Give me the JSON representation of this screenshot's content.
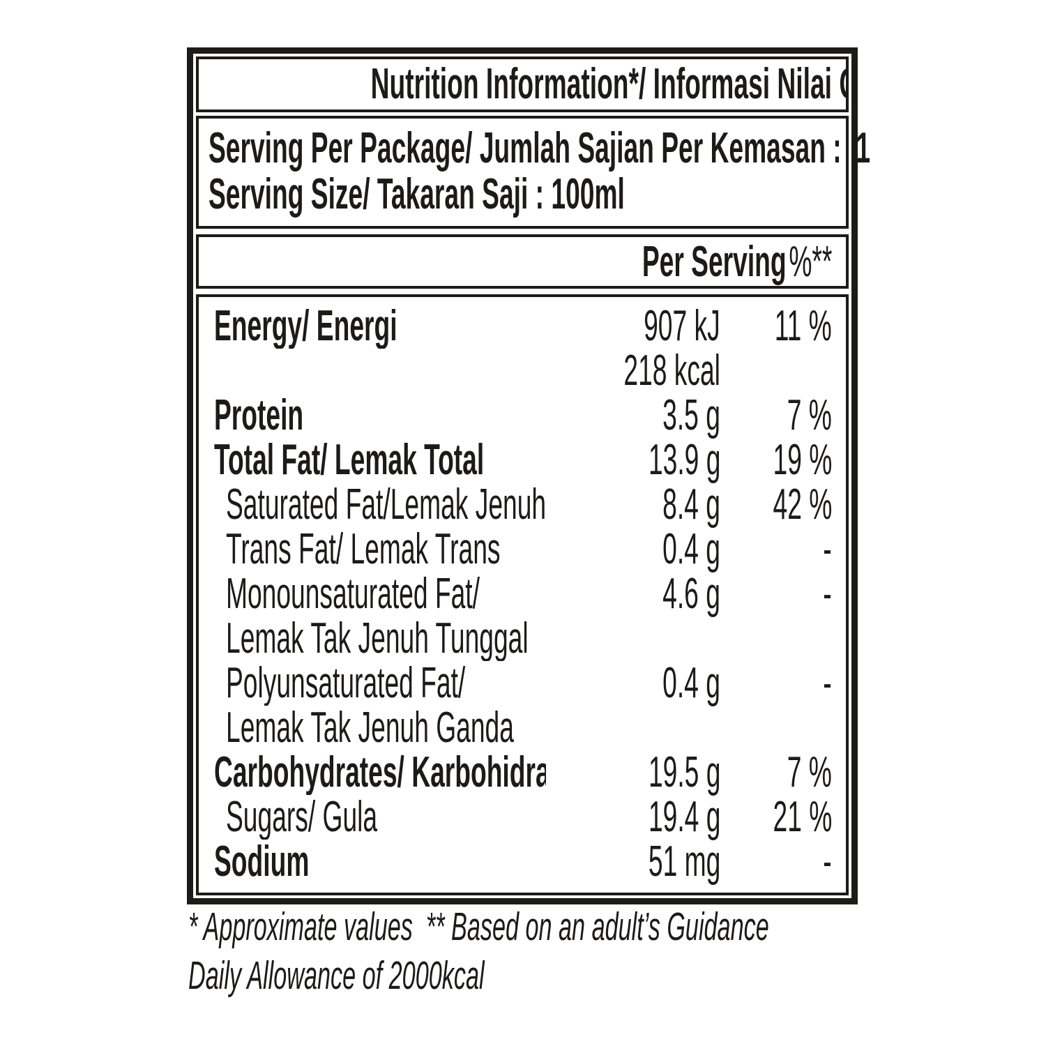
{
  "title": "Nutrition Information*/ Informasi Nilai Gizi",
  "serving": {
    "line1": "Serving Per Package/ Jumlah Sajian Per Kemasan :  1",
    "line2": "Serving Size/ Takaran Saji : 100ml"
  },
  "table": {
    "columns": {
      "per_serving": "Per Serving",
      "percent": "%**"
    },
    "rows": [
      {
        "label": "Energy/ Energi",
        "amount": "907 kJ",
        "percent": "11 %"
      },
      {
        "label": "",
        "amount": "218 kcal",
        "percent": ""
      },
      {
        "label": "Protein",
        "amount": "3.5 g",
        "percent": "7 %"
      },
      {
        "label": "Total Fat/ Lemak Total",
        "amount": "13.9 g",
        "percent": "19 %"
      },
      {
        "label": "Saturated Fat/Lemak Jenuh",
        "amount": "8.4 g",
        "percent": "42 %"
      },
      {
        "label": "Trans Fat/ Lemak Trans",
        "amount": "0.4 g",
        "percent": "-"
      },
      {
        "label": "Monounsaturated Fat/",
        "amount": "4.6 g",
        "percent": "-"
      },
      {
        "label": "Lemak Tak Jenuh Tunggal",
        "amount": "",
        "percent": ""
      },
      {
        "label": "Polyunsaturated Fat/",
        "amount": "0.4 g",
        "percent": "-"
      },
      {
        "label": "Lemak Tak Jenuh Ganda",
        "amount": "",
        "percent": ""
      },
      {
        "label": "Carbohydrates/ Karbohidrate",
        "amount": "19.5 g",
        "percent": "7 %"
      },
      {
        "label": "Sugars/ Gula",
        "amount": "19.4 g",
        "percent": "21 %"
      },
      {
        "label": "Sodium",
        "amount": "51 mg",
        "percent": "-"
      }
    ]
  },
  "footnote": {
    "line1": "* Approximate values  ** Based on an adult’s Guidance",
    "line2": "Daily Allowance of 2000kcal"
  },
  "colors": {
    "ink": "#1d1b1a",
    "background": "#ffffff"
  }
}
